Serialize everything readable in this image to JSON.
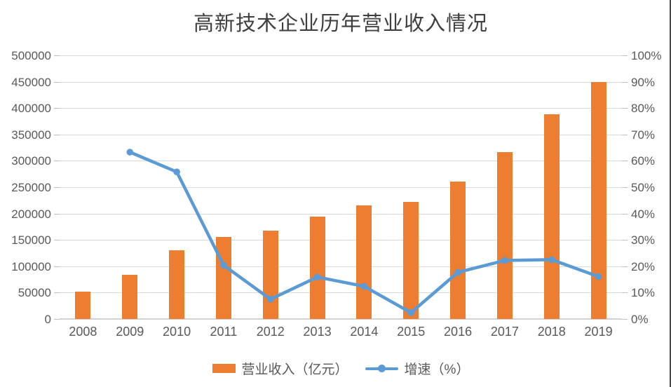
{
  "title": "高新技术企业历年营业收入情况",
  "chart_data": {
    "type": "bar",
    "subtype": "combo-bar-line-dual-axis",
    "title": "高新技术企业历年营业收入情况",
    "categories": [
      "2008",
      "2009",
      "2010",
      "2011",
      "2012",
      "2013",
      "2014",
      "2015",
      "2016",
      "2017",
      "2018",
      "2019"
    ],
    "series": [
      {
        "name": "营业收入（亿元）",
        "type": "bar",
        "axis": "left",
        "color": "#ED7D31",
        "values": [
          52000,
          84000,
          130000,
          156000,
          167000,
          194000,
          216000,
          222000,
          260000,
          317000,
          388000,
          449000
        ]
      },
      {
        "name": "增速（%）",
        "type": "line",
        "axis": "right",
        "color": "#5B9BD5",
        "values": [
          null,
          63.3,
          55.8,
          20.4,
          7.5,
          15.9,
          12.4,
          2.4,
          17.7,
          22.2,
          22.5,
          16.1
        ]
      }
    ],
    "left_axis": {
      "min": 0,
      "max": 500000,
      "step": 50000,
      "tick_labels": [
        "0",
        "50000",
        "100000",
        "150000",
        "200000",
        "250000",
        "300000",
        "350000",
        "400000",
        "450000",
        "500000"
      ]
    },
    "right_axis": {
      "min": 0,
      "max": 100,
      "step": 10,
      "tick_labels": [
        "0%",
        "10%",
        "20%",
        "30%",
        "40%",
        "50%",
        "60%",
        "70%",
        "80%",
        "90%",
        "100%"
      ]
    },
    "grid": true,
    "legend_position": "bottom"
  },
  "colors": {
    "bar": "#ED7D31",
    "line": "#5B9BD5",
    "gridline": "#d9d9d9",
    "axis_line": "#d2d2d2",
    "tick": "#bfbfbf",
    "label_text": "#595959",
    "title_text": "#3f3f3f",
    "window_edge": "#474747"
  }
}
